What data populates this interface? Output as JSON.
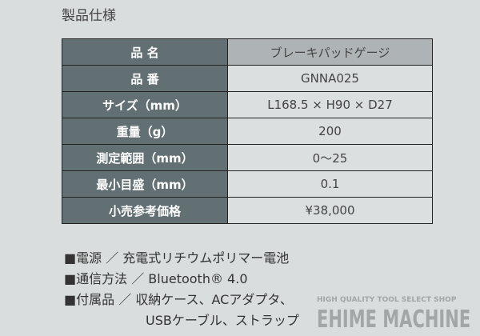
{
  "title": "製品仕様",
  "specs": [
    {
      "label": "品 名",
      "value": "ブレーキパッドゲージ"
    },
    {
      "label": "品 番",
      "value": "GNNA025"
    },
    {
      "label": "サイズ（mm）",
      "value": "L168.5 × H90 × D27"
    },
    {
      "label": "重量（g）",
      "value": "200"
    },
    {
      "label": "測定範囲（mm）",
      "value": "0〜25"
    },
    {
      "label": "最小目盛（mm）",
      "value": "0.1"
    },
    {
      "label": "小売参考価格",
      "value": "¥38,000"
    }
  ],
  "notes": [
    "■電源 ／ 充電式リチウムポリマー電池",
    "■通信方法 ／ Bluetooth® 4.0",
    "■付属品 ／ 収納ケース、ACアダプタ、",
    "USBケーブル、ストラップ"
  ],
  "watermark": {
    "tagline": "HIGH QUALITY TOOL SELECT SHOP",
    "brand": "EHIME MACHINE"
  }
}
